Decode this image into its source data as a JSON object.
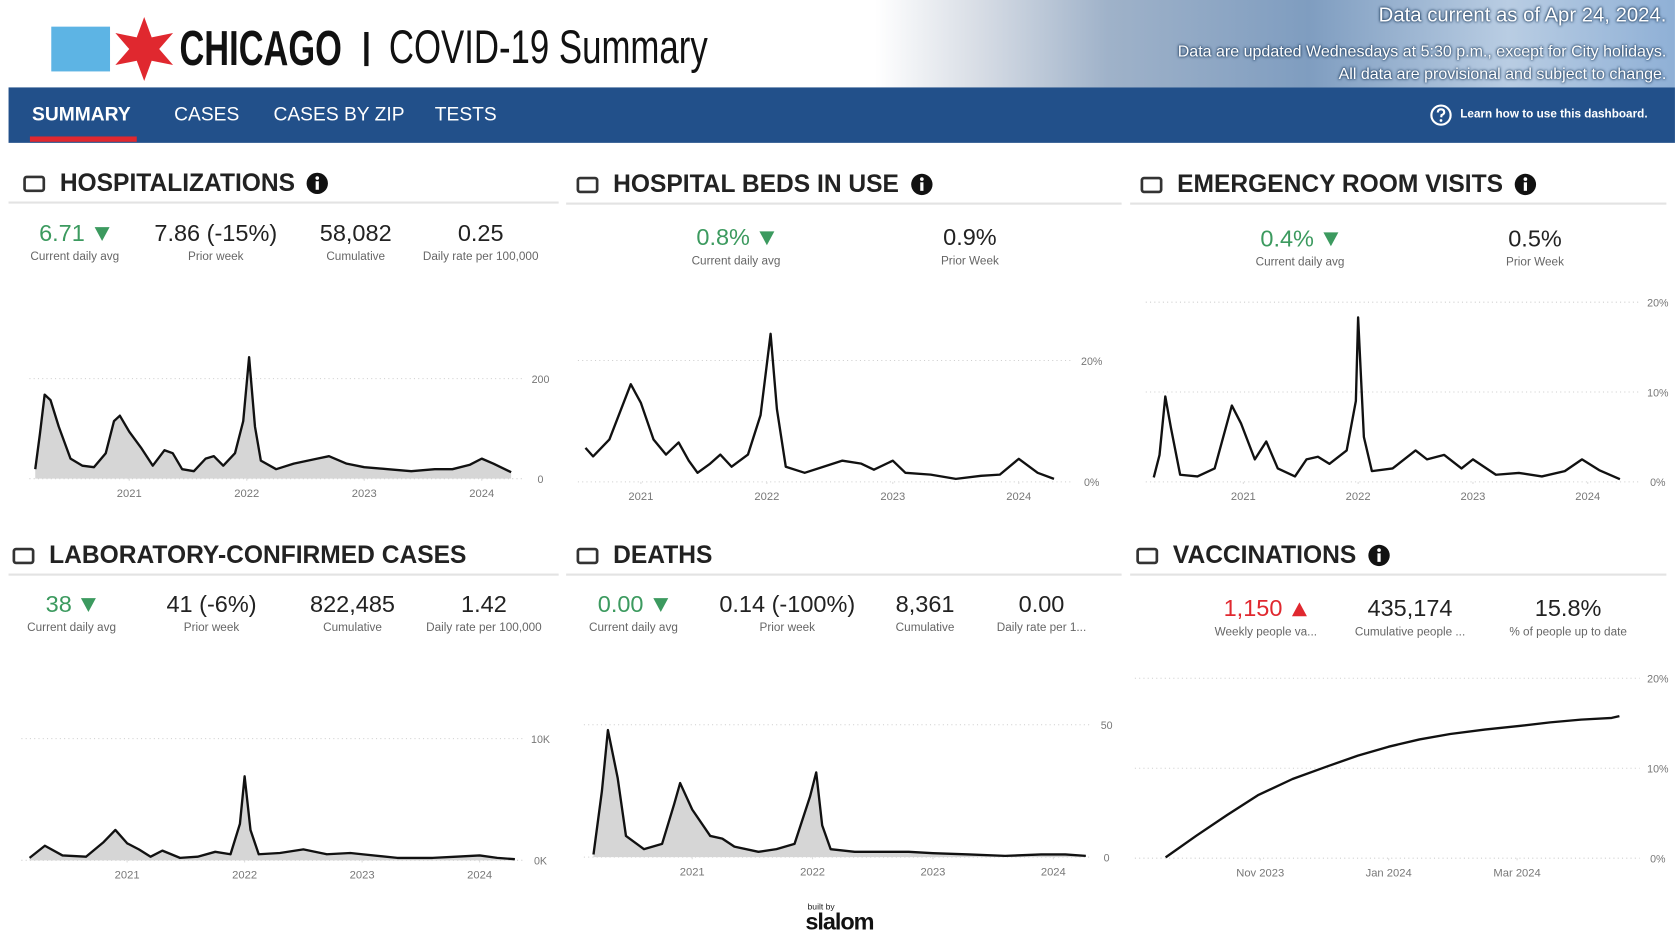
{
  "header": {
    "city": "CHICAGO",
    "title": "COVID-19 Summary",
    "data_current": "Data current as of Apr 24, 2024.",
    "update_note": "Data are updated Wednesdays at 5:30 p.m., except for City holidays.",
    "provisional_note": "All data are provisional and subject to change."
  },
  "nav": {
    "tabs": [
      "SUMMARY",
      "CASES",
      "CASES BY ZIP",
      "TESTS"
    ],
    "help": "Learn how to use this dashboard."
  },
  "panels": [
    {
      "title": "HOSPITALIZATIONS",
      "stats": [
        {
          "value": "6.71",
          "label": "Current daily avg",
          "trend": "down",
          "color": "#3c9a5f"
        },
        {
          "value": "7.86 (-15%)",
          "label": "Prior week"
        },
        {
          "value": "58,082",
          "label": "Cumulative"
        },
        {
          "value": "0.25",
          "label": "Daily rate per 100,000"
        }
      ]
    },
    {
      "title": "HOSPITAL BEDS IN USE",
      "stats": [
        {
          "value": "0.8%",
          "label": "Current daily avg",
          "trend": "down",
          "color": "#3c9a5f"
        },
        {
          "value": "0.9%",
          "label": "Prior Week"
        }
      ]
    },
    {
      "title": "EMERGENCY ROOM VISITS",
      "stats": [
        {
          "value": "0.4%",
          "label": "Current daily avg",
          "trend": "down",
          "color": "#3c9a5f"
        },
        {
          "value": "0.5%",
          "label": "Prior Week"
        }
      ]
    },
    {
      "title": "LABORATORY-CONFIRMED CASES",
      "stats": [
        {
          "value": "38",
          "label": "Current daily avg",
          "trend": "down",
          "color": "#3c9a5f"
        },
        {
          "value": "41 (-6%)",
          "label": "Prior week"
        },
        {
          "value": "822,485",
          "label": "Cumulative"
        },
        {
          "value": "1.42",
          "label": "Daily rate per 100,000"
        }
      ]
    },
    {
      "title": "DEATHS",
      "stats": [
        {
          "value": "0.00",
          "label": "Current daily avg",
          "trend": "down",
          "color": "#3c9a5f"
        },
        {
          "value": "0.14 (-100%)",
          "label": "Prior week"
        },
        {
          "value": "8,361",
          "label": "Cumulative"
        },
        {
          "value": "0.00",
          "label": "Daily rate per 1..."
        }
      ]
    },
    {
      "title": "VACCINATIONS",
      "stats": [
        {
          "value": "1,150",
          "label": "Weekly people va...",
          "trend": "up",
          "color": "#e0282f"
        },
        {
          "value": "435,174",
          "label": "Cumulative people ..."
        },
        {
          "value": "15.8%",
          "label": "% of people up to date"
        }
      ]
    }
  ],
  "footer": {
    "built_by": "built by",
    "brand": "slalom"
  },
  "chart_data": [
    {
      "type": "line",
      "color": "#111111",
      "area_color": "#d6d6d6",
      "x": [
        2020.2,
        2020.24,
        2020.28,
        2020.33,
        2020.4,
        2020.5,
        2020.6,
        2020.7,
        2020.8,
        2020.87,
        2020.92,
        2021.0,
        2021.1,
        2021.2,
        2021.3,
        2021.37,
        2021.45,
        2021.55,
        2021.65,
        2021.72,
        2021.8,
        2021.9,
        2021.97,
        2022.02,
        2022.07,
        2022.12,
        2022.25,
        2022.4,
        2022.6,
        2022.7,
        2022.85,
        2023.0,
        2023.2,
        2023.4,
        2023.6,
        2023.75,
        2023.9,
        2024.0,
        2024.1,
        2024.25
      ],
      "values": [
        19,
        90,
        168,
        157,
        104,
        40,
        26,
        23,
        51,
        115,
        126,
        94,
        62,
        26,
        57,
        51,
        19,
        15,
        40,
        45,
        26,
        51,
        115,
        243,
        104,
        36,
        19,
        30,
        40,
        45,
        30,
        23,
        19,
        15,
        19,
        19,
        28,
        40,
        30,
        13
      ],
      "xlim": [
        2020.15,
        2024.35
      ],
      "ylim": [
        0,
        260
      ],
      "xticks": [
        2021,
        2022,
        2023,
        2024
      ],
      "yticks": [
        0,
        200
      ],
      "grid": true
    },
    {
      "type": "line",
      "color": "#111111",
      "area_color": null,
      "x": [
        2020.56,
        2020.62,
        2020.75,
        2020.92,
        2021.0,
        2021.1,
        2021.2,
        2021.3,
        2021.38,
        2021.45,
        2021.55,
        2021.63,
        2021.72,
        2021.85,
        2021.95,
        2022.03,
        2022.08,
        2022.15,
        2022.3,
        2022.45,
        2022.6,
        2022.75,
        2022.85,
        2023.0,
        2023.1,
        2023.3,
        2023.5,
        2023.7,
        2023.85,
        2024.0,
        2024.15,
        2024.28
      ],
      "values": [
        5.6,
        4.2,
        7,
        16.1,
        13,
        7,
        4.5,
        6.5,
        3.5,
        1.5,
        3,
        4.5,
        2.5,
        4.5,
        11,
        24.4,
        12,
        2.5,
        1.5,
        2.5,
        3.5,
        3,
        2,
        3.5,
        1.5,
        1.2,
        0.5,
        1,
        1.2,
        3.8,
        1.5,
        0.5
      ],
      "xlim": [
        2020.5,
        2024.35
      ],
      "ylim": [
        0,
        26
      ],
      "xticks": [
        2021,
        2022,
        2023,
        2024
      ],
      "yticks": [
        {
          "value": 0,
          "label": "0%"
        },
        {
          "value": 20,
          "label": "20%"
        }
      ],
      "grid": true
    },
    {
      "type": "line",
      "color": "#111111",
      "area_color": null,
      "x": [
        2020.22,
        2020.27,
        2020.32,
        2020.37,
        2020.45,
        2020.6,
        2020.75,
        2020.9,
        2020.98,
        2021.1,
        2021.2,
        2021.3,
        2021.45,
        2021.55,
        2021.65,
        2021.75,
        2021.9,
        2021.98,
        2022.0,
        2022.05,
        2022.12,
        2022.3,
        2022.5,
        2022.6,
        2022.75,
        2022.9,
        2023.0,
        2023.2,
        2023.4,
        2023.6,
        2023.8,
        2023.95,
        2024.1,
        2024.28
      ],
      "values": [
        0.5,
        3,
        9.5,
        6,
        0.8,
        0.6,
        1.5,
        8.5,
        6.5,
        2.5,
        4.5,
        1.5,
        0.6,
        2.5,
        2.8,
        2,
        3.5,
        9,
        18.3,
        5,
        1.2,
        1.5,
        3.5,
        2.5,
        3,
        1.5,
        2.5,
        0.8,
        1,
        0.6,
        1.2,
        2.5,
        1.3,
        0.3
      ],
      "xlim": [
        2020.15,
        2024.35
      ],
      "ylim": [
        0,
        21
      ],
      "xticks": [
        2021,
        2022,
        2023,
        2024
      ],
      "yticks": [
        {
          "value": 0,
          "label": "0%"
        },
        {
          "value": 10,
          "label": "10%"
        },
        {
          "value": 20,
          "label": "20%"
        }
      ],
      "grid": true
    },
    {
      "type": "line",
      "color": "#111111",
      "area_color": "#d6d6d6",
      "x": [
        2020.17,
        2020.3,
        2020.45,
        2020.65,
        2020.8,
        2020.9,
        2021.0,
        2021.1,
        2021.2,
        2021.3,
        2021.45,
        2021.6,
        2021.75,
        2021.88,
        2021.96,
        2022.0,
        2022.05,
        2022.12,
        2022.3,
        2022.5,
        2022.7,
        2022.9,
        2023.0,
        2023.3,
        2023.6,
        2023.8,
        2024.0,
        2024.15,
        2024.3
      ],
      "values": [
        200,
        1200,
        400,
        300,
        1500,
        2500,
        1400,
        900,
        300,
        800,
        200,
        300,
        700,
        500,
        3000,
        6900,
        2500,
        500,
        600,
        900,
        500,
        600,
        500,
        200,
        200,
        300,
        400,
        200,
        100
      ],
      "xlim": [
        2020.1,
        2024.35
      ],
      "ylim": [
        0,
        12000
      ],
      "xticks": [
        2021,
        2022,
        2023,
        2024
      ],
      "yticks": [
        {
          "value": 0,
          "label": "0K"
        },
        {
          "value": 10000,
          "label": "10K"
        }
      ],
      "grid": true
    },
    {
      "type": "line",
      "color": "#111111",
      "area_color": "#d6d6d6",
      "x": [
        2020.18,
        2020.25,
        2020.3,
        2020.38,
        2020.45,
        2020.6,
        2020.75,
        2020.85,
        2020.9,
        2021.0,
        2021.15,
        2021.25,
        2021.35,
        2021.55,
        2021.7,
        2021.85,
        2021.98,
        2022.03,
        2022.08,
        2022.15,
        2022.35,
        2022.6,
        2022.8,
        2023.0,
        2023.3,
        2023.6,
        2023.9,
        2024.1,
        2024.27
      ],
      "values": [
        1,
        25,
        48,
        30,
        8,
        3,
        5,
        20,
        28,
        18,
        8,
        7,
        4,
        2,
        3,
        5,
        23,
        32,
        12,
        3,
        2,
        2,
        2,
        1.5,
        1,
        0.5,
        1,
        1,
        0.5
      ],
      "xlim": [
        2020.1,
        2024.35
      ],
      "ylim": [
        0,
        60
      ],
      "xticks": [
        2021,
        2022,
        2023,
        2024
      ],
      "yticks": [
        0,
        50
      ],
      "grid": true
    },
    {
      "type": "line",
      "color": "#111111",
      "area_color": null,
      "x": [
        2023.71,
        2023.75,
        2023.79,
        2023.83,
        2023.875,
        2023.92,
        2023.96,
        2024.0,
        2024.04,
        2024.08,
        2024.125,
        2024.17,
        2024.21,
        2024.25,
        2024.29,
        2024.3
      ],
      "values": [
        0.1,
        2.5,
        4.8,
        7,
        8.8,
        10.2,
        11.4,
        12.4,
        13.2,
        13.8,
        14.3,
        14.7,
        15.1,
        15.4,
        15.6,
        15.8
      ],
      "xlim": [
        2023.67,
        2024.33
      ],
      "ylim": [
        0,
        20.5
      ],
      "xticks": [
        {
          "value": 2023.833,
          "label": "Nov 2023"
        },
        {
          "value": 2024.0,
          "label": "Jan 2024"
        },
        {
          "value": 2024.167,
          "label": "Mar 2024"
        }
      ],
      "yticks": [
        {
          "value": 0,
          "label": "0%"
        },
        {
          "value": 10,
          "label": "10%"
        },
        {
          "value": 20,
          "label": "20%"
        }
      ],
      "grid": true
    }
  ]
}
